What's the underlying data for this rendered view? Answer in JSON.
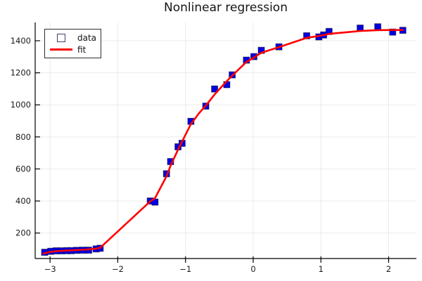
{
  "chart_data": {
    "type": "scatter",
    "title": "Nonlinear regression",
    "xlabel": "",
    "ylabel": "",
    "xlim": [
      -3.22,
      2.41
    ],
    "ylim": [
      41,
      1514
    ],
    "xticks": [
      -3,
      -2,
      -1,
      0,
      1,
      2
    ],
    "yticks": [
      200,
      400,
      600,
      800,
      1000,
      1200,
      1400
    ],
    "grid": true,
    "legend_position": "top-left",
    "series": [
      {
        "name": "data",
        "type": "scatter",
        "marker": "square",
        "marker_size": 9,
        "marker_color": "#0000e0",
        "marker_stroke": "rgba(0,0,0,0.45)",
        "points": [
          [
            -3.08,
            80
          ],
          [
            -2.99,
            86
          ],
          [
            -2.91,
            89
          ],
          [
            -2.83,
            89
          ],
          [
            -2.75,
            90
          ],
          [
            -2.69,
            90
          ],
          [
            -2.61,
            92
          ],
          [
            -2.52,
            93
          ],
          [
            -2.43,
            93
          ],
          [
            -2.32,
            101
          ],
          [
            -2.26,
            105
          ],
          [
            -1.52,
            400
          ],
          [
            -1.45,
            393
          ],
          [
            -1.28,
            570
          ],
          [
            -1.22,
            646
          ],
          [
            -1.11,
            738
          ],
          [
            -1.05,
            760
          ],
          [
            -0.92,
            897
          ],
          [
            -0.7,
            992
          ],
          [
            -0.57,
            1099
          ],
          [
            -0.39,
            1126
          ],
          [
            -0.31,
            1187
          ],
          [
            -0.1,
            1279
          ],
          [
            0.01,
            1301
          ],
          [
            0.12,
            1340
          ],
          [
            0.38,
            1362
          ],
          [
            0.79,
            1431
          ],
          [
            0.97,
            1424
          ],
          [
            1.04,
            1436
          ],
          [
            1.12,
            1458
          ],
          [
            1.58,
            1479
          ],
          [
            1.84,
            1487
          ],
          [
            2.06,
            1454
          ],
          [
            2.21,
            1465
          ]
        ]
      },
      {
        "name": "fit",
        "type": "line",
        "color": "#ff0000",
        "line_width": 2.6,
        "points": [
          [
            -3.1,
            72
          ],
          [
            -2.99,
            83
          ],
          [
            -2.91,
            87
          ],
          [
            -2.83,
            89
          ],
          [
            -2.75,
            91
          ],
          [
            -2.69,
            92
          ],
          [
            -2.61,
            94
          ],
          [
            -2.52,
            96
          ],
          [
            -2.43,
            98
          ],
          [
            -2.32,
            103
          ],
          [
            -2.26,
            108
          ],
          [
            -1.52,
            398
          ],
          [
            -1.45,
            418
          ],
          [
            -1.28,
            555
          ],
          [
            -1.22,
            620
          ],
          [
            -1.11,
            720
          ],
          [
            -1.01,
            805
          ],
          [
            -0.92,
            880
          ],
          [
            -0.8,
            948
          ],
          [
            -0.7,
            995
          ],
          [
            -0.57,
            1065
          ],
          [
            -0.39,
            1148
          ],
          [
            -0.31,
            1182
          ],
          [
            -0.1,
            1268
          ],
          [
            0.01,
            1295
          ],
          [
            0.12,
            1325
          ],
          [
            0.38,
            1360
          ],
          [
            0.79,
            1418
          ],
          [
            0.97,
            1430
          ],
          [
            1.04,
            1435
          ],
          [
            1.12,
            1443
          ],
          [
            1.58,
            1461
          ],
          [
            1.84,
            1466
          ],
          [
            2.06,
            1467
          ],
          [
            2.21,
            1467
          ]
        ]
      }
    ]
  },
  "colors": {
    "grid": "#ebebeb",
    "axis": "#000000",
    "title_text": "#151515",
    "tick_text": "#1a1a1a",
    "background": "#ffffff"
  }
}
